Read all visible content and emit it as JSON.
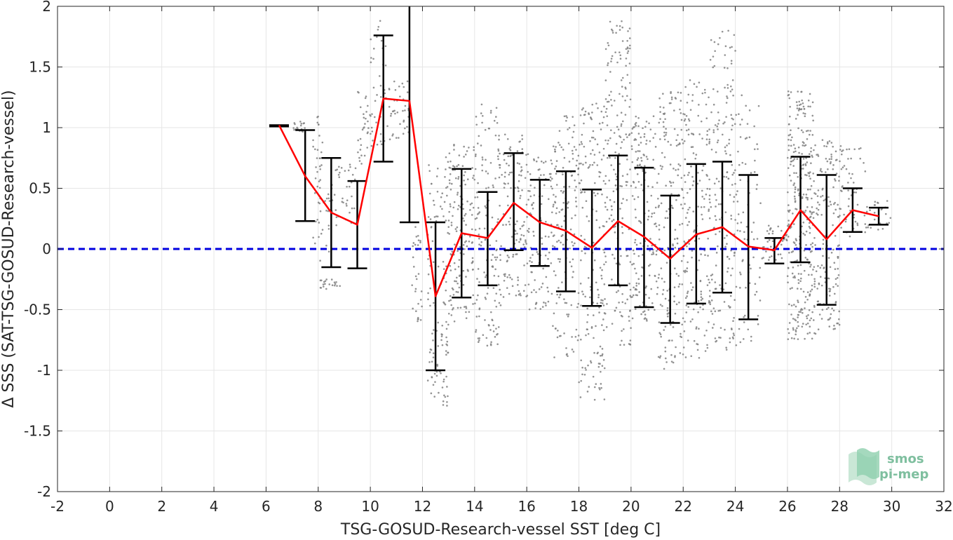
{
  "chart_data": {
    "type": "line",
    "xlabel": "TSG-GOSUD-Research-vessel SST [deg C]",
    "ylabel": "Δ SSS (SAT-TSG-GOSUD-Research-vessel)",
    "xlim": [
      -2,
      32
    ],
    "ylim": [
      -2,
      2
    ],
    "xticks": [
      -2,
      0,
      2,
      4,
      6,
      8,
      10,
      12,
      14,
      16,
      18,
      20,
      22,
      24,
      26,
      28,
      30,
      32
    ],
    "yticks": [
      -2,
      -1.5,
      -1,
      -0.5,
      0,
      0.5,
      1,
      1.5,
      2
    ],
    "grid": true,
    "reference_line": {
      "y": 0,
      "style": "dashed",
      "color": "#0000e0"
    },
    "series": [
      {
        "kind": "binned_mean_with_std",
        "color": "#ff0000",
        "x": [
          6.5,
          7.5,
          8.5,
          9.5,
          10.5,
          11.5,
          12.5,
          13.5,
          14.5,
          15.5,
          16.5,
          17.5,
          18.5,
          19.5,
          20.5,
          21.5,
          22.5,
          23.5,
          24.5,
          25.5,
          26.5,
          27.5,
          28.5,
          29.5
        ],
        "y": [
          1.02,
          0.6,
          0.3,
          0.2,
          1.24,
          1.22,
          -0.39,
          0.13,
          0.09,
          0.38,
          0.22,
          0.15,
          0.01,
          0.23,
          0.1,
          -0.08,
          0.12,
          0.18,
          0.02,
          -0.01,
          0.32,
          0.08,
          0.32,
          0.27
        ],
        "lower": [
          1.01,
          0.23,
          -0.15,
          -0.16,
          0.72,
          0.22,
          -1.0,
          -0.4,
          -0.3,
          -0.01,
          -0.14,
          -0.35,
          -0.47,
          -0.3,
          -0.48,
          -0.61,
          -0.45,
          -0.36,
          -0.58,
          -0.12,
          -0.11,
          -0.46,
          0.14,
          0.2
        ],
        "upper": [
          1.02,
          0.98,
          0.75,
          0.56,
          1.76,
          2.05,
          0.22,
          0.66,
          0.47,
          0.79,
          0.57,
          0.64,
          0.49,
          0.77,
          0.67,
          0.44,
          0.7,
          0.72,
          0.61,
          0.09,
          0.76,
          0.61,
          0.5,
          0.34
        ]
      },
      {
        "kind": "scatter_points",
        "color": "#808080",
        "clusters": [
          {
            "x_range": [
              7.0,
              7.5
            ],
            "y_range": [
              0.95,
              1.05
            ],
            "n": 20
          },
          {
            "x_range": [
              7.8,
              8.2
            ],
            "y_range": [
              0.5,
              1.12
            ],
            "n": 25
          },
          {
            "x_range": [
              7.8,
              8.7
            ],
            "y_range": [
              -0.1,
              0.5
            ],
            "n": 30
          },
          {
            "x_range": [
              8.0,
              8.9
            ],
            "y_range": [
              -0.33,
              -0.25
            ],
            "n": 20
          },
          {
            "x_range": [
              8.5,
              9.5
            ],
            "y_range": [
              0.2,
              0.7
            ],
            "n": 35
          },
          {
            "x_range": [
              9.5,
              10.0
            ],
            "y_range": [
              0.7,
              1.3
            ],
            "n": 30
          },
          {
            "x_range": [
              10.0,
              10.6
            ],
            "y_range": [
              0.8,
              1.9
            ],
            "n": 40
          },
          {
            "x_range": [
              10.6,
              11.5
            ],
            "y_range": [
              0.9,
              1.4
            ],
            "n": 40
          },
          {
            "x_range": [
              11.6,
              12.0
            ],
            "y_range": [
              -0.6,
              0.2
            ],
            "n": 30
          },
          {
            "x_range": [
              12.2,
              13.0
            ],
            "y_range": [
              -1.3,
              -0.6
            ],
            "n": 60
          },
          {
            "x_range": [
              12.2,
              13.5
            ],
            "y_range": [
              -0.5,
              0.8
            ],
            "n": 90
          },
          {
            "x_range": [
              13.0,
              14.0
            ],
            "y_range": [
              -0.6,
              0.9
            ],
            "n": 120
          },
          {
            "x_range": [
              14.0,
              15.0
            ],
            "y_range": [
              -0.8,
              1.2
            ],
            "n": 150
          },
          {
            "x_range": [
              15.0,
              16.0
            ],
            "y_range": [
              -0.4,
              0.95
            ],
            "n": 120
          },
          {
            "x_range": [
              16.0,
              17.0
            ],
            "y_range": [
              -0.5,
              0.8
            ],
            "n": 110
          },
          {
            "x_range": [
              17.0,
              18.0
            ],
            "y_range": [
              -0.9,
              1.1
            ],
            "n": 150
          },
          {
            "x_range": [
              18.0,
              19.0
            ],
            "y_range": [
              -1.25,
              1.2
            ],
            "n": 180
          },
          {
            "x_range": [
              19.0,
              20.0
            ],
            "y_range": [
              -0.8,
              1.9
            ],
            "n": 200
          },
          {
            "x_range": [
              20.0,
              21.0
            ],
            "y_range": [
              -0.6,
              1.1
            ],
            "n": 160
          },
          {
            "x_range": [
              21.0,
              22.0
            ],
            "y_range": [
              -1.0,
              1.3
            ],
            "n": 180
          },
          {
            "x_range": [
              22.0,
              23.0
            ],
            "y_range": [
              -0.9,
              1.4
            ],
            "n": 170
          },
          {
            "x_range": [
              23.0,
              24.0
            ],
            "y_range": [
              -0.85,
              1.8
            ],
            "n": 180
          },
          {
            "x_range": [
              24.0,
              25.0
            ],
            "y_range": [
              -0.8,
              1.3
            ],
            "n": 80
          },
          {
            "x_range": [
              25.0,
              26.0
            ],
            "y_range": [
              -0.1,
              0.2
            ],
            "n": 40
          },
          {
            "x_range": [
              26.0,
              27.0
            ],
            "y_range": [
              -0.75,
              1.3
            ],
            "n": 300
          },
          {
            "x_range": [
              27.0,
              28.0
            ],
            "y_range": [
              -0.7,
              0.9
            ],
            "n": 160
          },
          {
            "x_range": [
              28.0,
              29.0
            ],
            "y_range": [
              0.1,
              0.85
            ],
            "n": 60
          },
          {
            "x_range": [
              29.0,
              30.0
            ],
            "y_range": [
              0.15,
              0.4
            ],
            "n": 25
          }
        ]
      }
    ]
  },
  "logo": {
    "line1": "smos",
    "line2": "pi-mep"
  }
}
